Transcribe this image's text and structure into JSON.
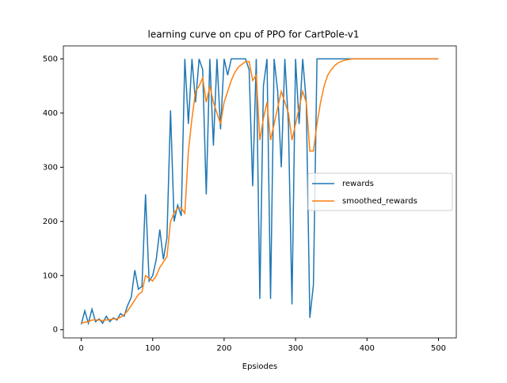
{
  "chart_data": {
    "type": "line",
    "title": "learning curve on cpu of PPO for CartPole-v1",
    "x_label": "Epsiodes",
    "x": [
      0,
      5,
      10,
      15,
      20,
      25,
      30,
      35,
      40,
      45,
      50,
      55,
      60,
      65,
      70,
      75,
      80,
      85,
      90,
      95,
      100,
      105,
      110,
      115,
      120,
      125,
      130,
      135,
      140,
      145,
      150,
      155,
      160,
      165,
      170,
      175,
      180,
      185,
      190,
      195,
      200,
      205,
      210,
      215,
      220,
      225,
      230,
      235,
      240,
      245,
      250,
      255,
      260,
      265,
      270,
      275,
      280,
      285,
      290,
      295,
      300,
      305,
      310,
      315,
      320,
      325,
      330,
      335,
      340,
      345,
      350,
      355,
      360,
      365,
      370,
      375,
      380,
      385,
      390,
      395,
      400,
      405,
      410,
      415,
      420,
      425,
      430,
      435,
      440,
      445,
      450,
      455,
      460,
      465,
      470,
      475,
      480,
      485,
      490,
      495,
      500
    ],
    "series": [
      {
        "name": "rewards",
        "color": "#1f77b4",
        "values": [
          10,
          35,
          12,
          38,
          15,
          20,
          12,
          25,
          15,
          22,
          18,
          30,
          25,
          45,
          60,
          110,
          75,
          80,
          250,
          90,
          100,
          130,
          185,
          130,
          170,
          405,
          200,
          230,
          210,
          500,
          380,
          500,
          420,
          500,
          480,
          250,
          500,
          340,
          500,
          370,
          500,
          470,
          500,
          500,
          500,
          500,
          500,
          480,
          265,
          500,
          57,
          450,
          500,
          57,
          500,
          440,
          300,
          500,
          380,
          47,
          500,
          380,
          500,
          420,
          22,
          83,
          500,
          500,
          500,
          500,
          500,
          500,
          500,
          500,
          500,
          500,
          500,
          500,
          500,
          500,
          500,
          500,
          500,
          500,
          500,
          500,
          500,
          500,
          500,
          500,
          500,
          500,
          500,
          500,
          500,
          500,
          500,
          500,
          500,
          500,
          500
        ]
      },
      {
        "name": "smoothed_rewards",
        "color": "#ff7f0e",
        "values": [
          12,
          14,
          15,
          18,
          18,
          18,
          17,
          18,
          19,
          20,
          20,
          23,
          28,
          35,
          45,
          55,
          65,
          70,
          100,
          95,
          90,
          100,
          115,
          125,
          135,
          200,
          215,
          225,
          225,
          215,
          330,
          390,
          440,
          450,
          465,
          420,
          450,
          420,
          400,
          380,
          420,
          440,
          460,
          475,
          485,
          490,
          495,
          495,
          460,
          470,
          350,
          390,
          420,
          350,
          380,
          410,
          440,
          420,
          400,
          350,
          380,
          410,
          440,
          420,
          330,
          330,
          380,
          420,
          450,
          470,
          480,
          488,
          493,
          496,
          498,
          499,
          500,
          500,
          500,
          500,
          500,
          500,
          500,
          500,
          500,
          500,
          500,
          500,
          500,
          500,
          500,
          500,
          500,
          500,
          500,
          500,
          500,
          500,
          500,
          500,
          500
        ]
      }
    ],
    "xlim": [
      -25,
      525
    ],
    "ylim": [
      -15,
      524
    ],
    "xticks": [
      0,
      100,
      200,
      300,
      400,
      500
    ],
    "yticks": [
      0,
      100,
      200,
      300,
      400,
      500
    ],
    "legend": "center right"
  }
}
